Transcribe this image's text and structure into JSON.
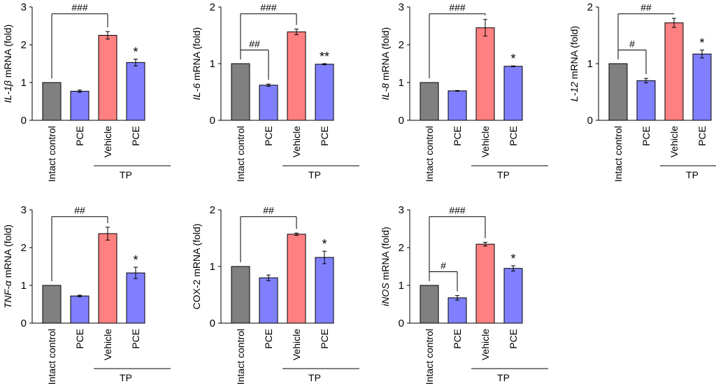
{
  "figure": {
    "colors": {
      "control": "#808080",
      "pce": "#8080ff",
      "vehicle": "#ff8080",
      "axis": "#000000"
    },
    "tp_label": "TP"
  },
  "chart_data": [
    {
      "type": "bar",
      "ylabel_italic": "IL-1β",
      "ylabel_rest": " mRNA (fold)",
      "ylim": [
        0,
        3
      ],
      "yticks": [
        0,
        1,
        2,
        3
      ],
      "categories": [
        "Intact control",
        "PCE",
        "Vehicle",
        "PCE"
      ],
      "values": [
        1.0,
        0.77,
        2.25,
        1.53
      ],
      "errors": [
        0,
        0.03,
        0.1,
        0.09
      ],
      "significance": [
        "",
        "",
        "",
        "*"
      ],
      "brackets": [
        {
          "from": 0,
          "to": 2,
          "label": "###"
        }
      ],
      "tp_group": [
        2,
        3
      ]
    },
    {
      "type": "bar",
      "ylabel_italic": "IL-6",
      "ylabel_rest": " mRNA (fold)",
      "ylim": [
        0,
        2
      ],
      "yticks": [
        0,
        1,
        2
      ],
      "categories": [
        "Intact control",
        "PCE",
        "Vehicle",
        "PCE"
      ],
      "values": [
        1.0,
        0.62,
        1.56,
        0.99
      ],
      "errors": [
        0,
        0.02,
        0.05,
        0.01
      ],
      "significance": [
        "",
        "",
        "",
        "**"
      ],
      "brackets": [
        {
          "from": 0,
          "to": 2,
          "label": "###"
        },
        {
          "from": 0,
          "to": 1,
          "label": "##"
        }
      ],
      "tp_group": [
        2,
        3
      ]
    },
    {
      "type": "bar",
      "ylabel_italic": "IL-8",
      "ylabel_rest": " mRNA (fold)",
      "ylim": [
        0,
        3
      ],
      "yticks": [
        0,
        1,
        2,
        3
      ],
      "categories": [
        "Intact control",
        "PCE",
        "Vehicle",
        "PCE"
      ],
      "values": [
        1.0,
        0.78,
        2.45,
        1.43
      ],
      "errors": [
        0,
        0.01,
        0.22,
        0.01
      ],
      "significance": [
        "",
        "",
        "",
        "*"
      ],
      "brackets": [
        {
          "from": 0,
          "to": 2,
          "label": "###"
        }
      ],
      "tp_group": [
        2,
        3
      ]
    },
    {
      "type": "bar",
      "ylabel_italic": "L-12",
      "ylabel_rest": " mRNA (fold)",
      "ylim": [
        0,
        2
      ],
      "yticks": [
        0,
        1,
        2
      ],
      "categories": [
        "Intact control",
        "PCE",
        "Vehicle",
        "PCE"
      ],
      "values": [
        1.0,
        0.7,
        1.72,
        1.17
      ],
      "errors": [
        0,
        0.04,
        0.08,
        0.07
      ],
      "significance": [
        "",
        "",
        "",
        "*"
      ],
      "brackets": [
        {
          "from": 0,
          "to": 2,
          "label": "##"
        },
        {
          "from": 0,
          "to": 1,
          "label": "#"
        }
      ],
      "tp_group": [
        2,
        3
      ]
    },
    {
      "type": "bar",
      "ylabel_italic": "TNF-α",
      "ylabel_rest": " mRNA (fold)",
      "ylim": [
        0,
        3
      ],
      "yticks": [
        0,
        1,
        2,
        3
      ],
      "categories": [
        "Intact control",
        "PCE",
        "Vehicle",
        "PCE"
      ],
      "values": [
        1.0,
        0.72,
        2.37,
        1.33
      ],
      "errors": [
        0,
        0.02,
        0.17,
        0.15
      ],
      "significance": [
        "",
        "",
        "",
        "*"
      ],
      "brackets": [
        {
          "from": 0,
          "to": 2,
          "label": "##"
        }
      ],
      "tp_group": [
        2,
        3
      ]
    },
    {
      "type": "bar",
      "ylabel_italic": "",
      "ylabel_rest": "COX-2 mRNA (fold)",
      "ylim": [
        0,
        2
      ],
      "yticks": [
        0,
        1,
        2
      ],
      "categories": [
        "Intact control",
        "PCE",
        "Vehicle",
        "PCE"
      ],
      "values": [
        1.0,
        0.8,
        1.57,
        1.16
      ],
      "errors": [
        0,
        0.05,
        0.02,
        0.11
      ],
      "significance": [
        "",
        "",
        "",
        "*"
      ],
      "brackets": [
        {
          "from": 0,
          "to": 2,
          "label": "##"
        }
      ],
      "tp_group": [
        2,
        3
      ]
    },
    {
      "type": "bar",
      "ylabel_italic": "iNOS",
      "ylabel_rest": " mRNA (fold)",
      "ylim": [
        0,
        3
      ],
      "yticks": [
        0,
        1,
        2,
        3
      ],
      "categories": [
        "Intact control",
        "PCE",
        "Vehicle",
        "PCE"
      ],
      "values": [
        1.0,
        0.67,
        2.09,
        1.45
      ],
      "errors": [
        0,
        0.06,
        0.05,
        0.07
      ],
      "significance": [
        "",
        "",
        "",
        "*"
      ],
      "brackets": [
        {
          "from": 0,
          "to": 2,
          "label": "###"
        },
        {
          "from": 0,
          "to": 1,
          "label": "#"
        }
      ],
      "tp_group": [
        2,
        3
      ]
    }
  ]
}
